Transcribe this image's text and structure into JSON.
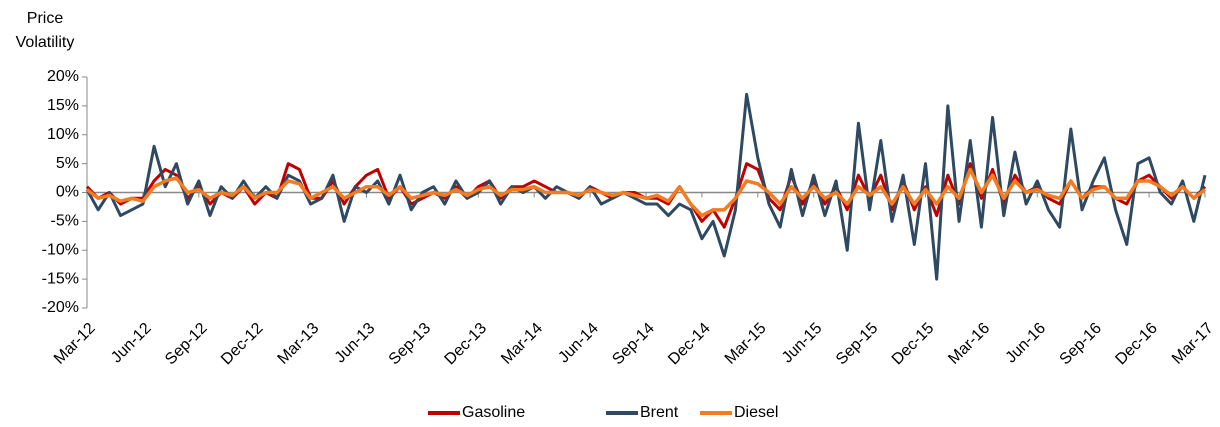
{
  "chart_data": {
    "type": "line",
    "ylabel": [
      "Price",
      "Volatility"
    ],
    "categories": [
      "Mar-12",
      null,
      null,
      null,
      null,
      "Jun-12",
      null,
      null,
      null,
      null,
      "Sep-12",
      null,
      null,
      null,
      null,
      "Dec-12",
      null,
      null,
      null,
      null,
      "Mar-13",
      null,
      null,
      null,
      null,
      "Jun-13",
      null,
      null,
      null,
      null,
      "Sep-13",
      null,
      null,
      null,
      null,
      "Dec-13",
      null,
      null,
      null,
      null,
      "Mar-14",
      null,
      null,
      null,
      null,
      "Jun-14",
      null,
      null,
      null,
      null,
      "Sep-14",
      null,
      null,
      null,
      null,
      "Dec-14",
      null,
      null,
      null,
      null,
      "Mar-15",
      null,
      null,
      null,
      null,
      "Jun-15",
      null,
      null,
      null,
      null,
      "Sep-15",
      null,
      null,
      null,
      null,
      "Dec-15",
      null,
      null,
      null,
      null,
      "Mar-16",
      null,
      null,
      null,
      null,
      "Jun-16",
      null,
      null,
      null,
      null,
      "Sep-16",
      null,
      null,
      null,
      null,
      "Dec-16",
      null,
      null,
      null,
      null,
      "Mar-17"
    ],
    "series": [
      {
        "name": "Gasoline",
        "color": "#c00000",
        "values": [
          1,
          -1,
          0,
          -2,
          -1,
          -1,
          2,
          4,
          3,
          -1,
          1,
          -2,
          0,
          -1,
          1,
          -2,
          0,
          -1,
          5,
          4,
          -1,
          -1,
          2,
          -2,
          1,
          3,
          4,
          -1,
          1,
          -2,
          -1,
          0,
          -1,
          1,
          -1,
          1,
          2,
          -1,
          1,
          1,
          2,
          1,
          0,
          0,
          -1,
          1,
          0,
          -1,
          0,
          0,
          -1,
          -1,
          -2,
          1,
          -2,
          -5,
          -3,
          -6,
          -1,
          5,
          4,
          -1,
          -3,
          3,
          -2,
          2,
          -2,
          1,
          -3,
          3,
          -1,
          3,
          -3,
          2,
          -3,
          1,
          -4,
          3,
          -2,
          5,
          -1,
          4,
          -2,
          3,
          0,
          1,
          -1,
          -2,
          2,
          -1,
          1,
          1,
          -1,
          -2,
          2,
          3,
          1,
          -1,
          1,
          -1,
          1
        ]
      },
      {
        "name": "Brent",
        "color": "#2e4a62",
        "values": [
          0.5,
          -3,
          0,
          -4,
          -3,
          -2,
          8,
          1,
          5,
          -2,
          2,
          -4,
          1,
          -1,
          2,
          -1,
          1,
          -1,
          3,
          2,
          -2,
          -1,
          3,
          -5,
          1,
          0,
          2,
          -2,
          3,
          -3,
          0,
          1,
          -2,
          2,
          -1,
          0,
          2,
          -2,
          1,
          0,
          1,
          -1,
          1,
          0,
          -1,
          1,
          -2,
          -1,
          0,
          -1,
          -2,
          -2,
          -4,
          -2,
          -3,
          -8,
          -5,
          -11,
          -3,
          17,
          6,
          -2,
          -6,
          4,
          -4,
          3,
          -4,
          2,
          -10,
          12,
          -3,
          9,
          -5,
          3,
          -9,
          5,
          -15,
          15,
          -5,
          9,
          -6,
          13,
          -4,
          7,
          -2,
          2,
          -3,
          -6,
          11,
          -3,
          2,
          6,
          -3,
          -9,
          5,
          6,
          0,
          -2,
          2,
          -5,
          3
        ]
      },
      {
        "name": "Diesel",
        "color": "#f47b20",
        "values": [
          0.5,
          -1,
          -0.5,
          -1.5,
          -1,
          -1.5,
          1,
          2,
          2.5,
          0,
          0.5,
          -1,
          0,
          -0.5,
          1,
          -1,
          0,
          0,
          2,
          1.5,
          -1,
          0,
          1,
          -1,
          0,
          1,
          1,
          -0.5,
          1,
          -1,
          -0.5,
          0,
          -0.5,
          0.5,
          -0.5,
          0.5,
          1,
          -0.5,
          0.5,
          0.5,
          1,
          0,
          0,
          0,
          -0.5,
          0.5,
          0,
          -0.5,
          0,
          -0.5,
          -1,
          -0.5,
          -1.5,
          1,
          -2,
          -4,
          -3,
          -3,
          -1,
          2,
          1.5,
          0,
          -2,
          1,
          -1,
          1,
          -1,
          0,
          -2,
          1,
          -0.5,
          1,
          -2,
          1,
          -2,
          0.5,
          -2,
          1,
          -1,
          4,
          0,
          3,
          -1,
          2,
          0,
          0.5,
          -0.5,
          -1,
          2,
          -1,
          0.5,
          1,
          -1,
          -1,
          2,
          2,
          1,
          -0.5,
          1,
          -1,
          0.5
        ]
      }
    ],
    "ylim": [
      -20,
      20
    ],
    "yticks": [
      {
        "value": -20,
        "label": "-20%"
      },
      {
        "value": -15,
        "label": "-15%"
      },
      {
        "value": -10,
        "label": "-10%"
      },
      {
        "value": -5,
        "label": "-5%"
      },
      {
        "value": 0,
        "label": "0%"
      },
      {
        "value": 5,
        "label": "5%"
      },
      {
        "value": 10,
        "label": "10%"
      },
      {
        "value": 15,
        "label": "15%"
      },
      {
        "value": 20,
        "label": "20%"
      }
    ],
    "grid": false
  }
}
